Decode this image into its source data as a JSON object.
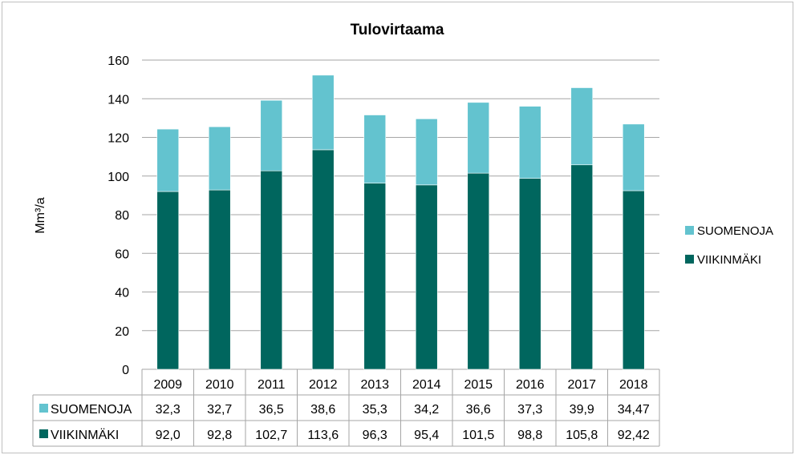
{
  "chart_data": {
    "type": "bar",
    "stacked": true,
    "title": "Tulovirtaama",
    "xlabel": "",
    "ylabel": "Mm³/a",
    "ylim": [
      0,
      160
    ],
    "yticks": [
      "0",
      "20",
      "40",
      "60",
      "80",
      "100",
      "120",
      "140",
      "160"
    ],
    "grid": true,
    "legend_position": "right",
    "categories": [
      "2009",
      "2010",
      "2011",
      "2012",
      "2013",
      "2014",
      "2015",
      "2016",
      "2017",
      "2018"
    ],
    "series": [
      {
        "name": "VIIKINMÄKI",
        "color": "#00665e",
        "values": [
          92.0,
          92.8,
          102.7,
          113.6,
          96.3,
          95.4,
          101.5,
          98.8,
          105.8,
          92.42
        ],
        "table_labels": [
          "92,0",
          "92,8",
          "102,7",
          "113,6",
          "96,3",
          "95,4",
          "101,5",
          "98,8",
          "105,8",
          "92,42"
        ]
      },
      {
        "name": "SUOMENOJA",
        "color": "#63c3cf",
        "values": [
          32.3,
          32.7,
          36.5,
          38.6,
          35.3,
          34.2,
          36.6,
          37.3,
          39.9,
          34.47
        ],
        "table_labels": [
          "32,3",
          "32,7",
          "36,5",
          "38,6",
          "35,3",
          "34,2",
          "36,6",
          "37,3",
          "39,9",
          "34,47"
        ]
      }
    ],
    "legend_order": [
      "SUOMENOJA",
      "VIIKINMÄKI"
    ],
    "table_row_order": [
      "SUOMENOJA",
      "VIIKINMÄKI"
    ]
  }
}
